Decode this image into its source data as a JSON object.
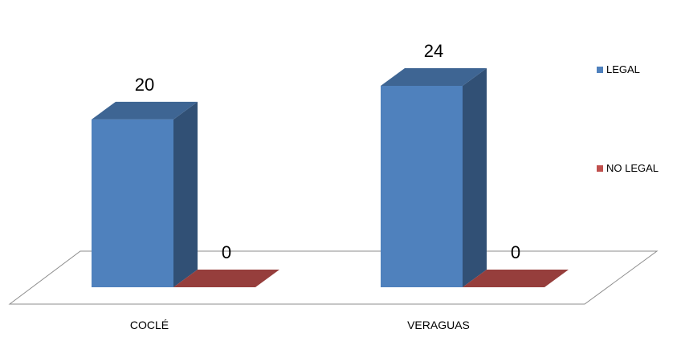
{
  "chart_data": {
    "type": "bar",
    "style": "3d-clustered-column",
    "categories": [
      "COCLÉ",
      "VERAGUAS"
    ],
    "series": [
      {
        "name": "LEGAL",
        "values": [
          20,
          24
        ],
        "color": "#4F81BD"
      },
      {
        "name": "NO LEGAL",
        "values": [
          0,
          0
        ],
        "color": "#C0504D"
      }
    ],
    "ylim": [
      0,
      24
    ],
    "grid": false,
    "legend": "right",
    "data_labels": true
  }
}
